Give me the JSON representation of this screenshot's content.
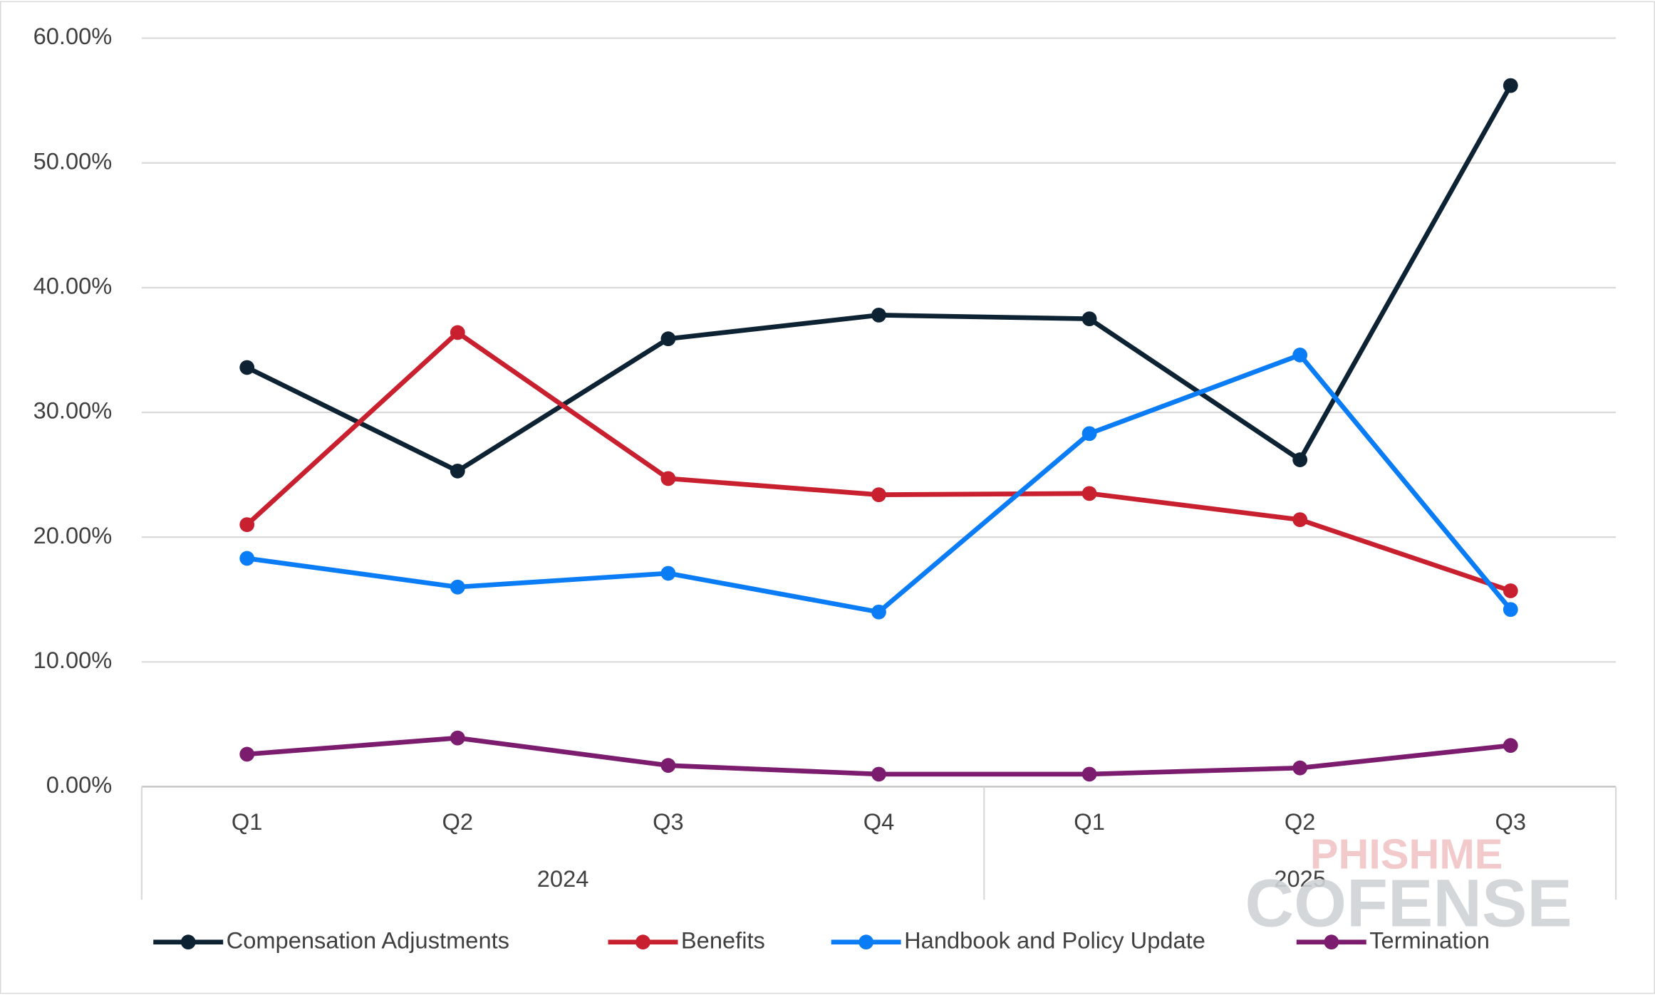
{
  "chart_data": {
    "type": "line",
    "categories": [
      "Q1",
      "Q2",
      "Q3",
      "Q4",
      "Q1",
      "Q2",
      "Q3"
    ],
    "x_groups": [
      "2024",
      "2024",
      "2024",
      "2024",
      "2025",
      "2025",
      "2025"
    ],
    "series": [
      {
        "name": "Compensation Adjustments",
        "color": "#0d2233",
        "values": [
          33.6,
          25.3,
          35.9,
          37.8,
          37.5,
          26.2,
          56.2
        ]
      },
      {
        "name": "Benefits",
        "color": "#c8202f",
        "values": [
          21.0,
          36.4,
          24.7,
          23.4,
          23.5,
          21.4,
          15.7
        ]
      },
      {
        "name": "Handbook and Policy Update",
        "color": "#0a7cf5",
        "values": [
          18.3,
          16.0,
          17.1,
          14.0,
          28.3,
          34.6,
          14.2
        ]
      },
      {
        "name": "Termination",
        "color": "#7b1c6e",
        "values": [
          2.6,
          3.9,
          1.7,
          1.0,
          1.0,
          1.5,
          3.3
        ]
      }
    ],
    "ylim": [
      0,
      60
    ],
    "yticks": [
      {
        "value": 0,
        "label": "0.00%"
      },
      {
        "value": 10,
        "label": "10.00%"
      },
      {
        "value": 20,
        "label": "20.00%"
      },
      {
        "value": 30,
        "label": "30.00%"
      },
      {
        "value": 40,
        "label": "40.00%"
      },
      {
        "value": 50,
        "label": "50.00%"
      },
      {
        "value": 60,
        "label": "60.00%"
      }
    ],
    "grid": true,
    "legend": "bottom",
    "watermark": {
      "top": "PHISHME",
      "bottom": "COFENSE"
    }
  }
}
